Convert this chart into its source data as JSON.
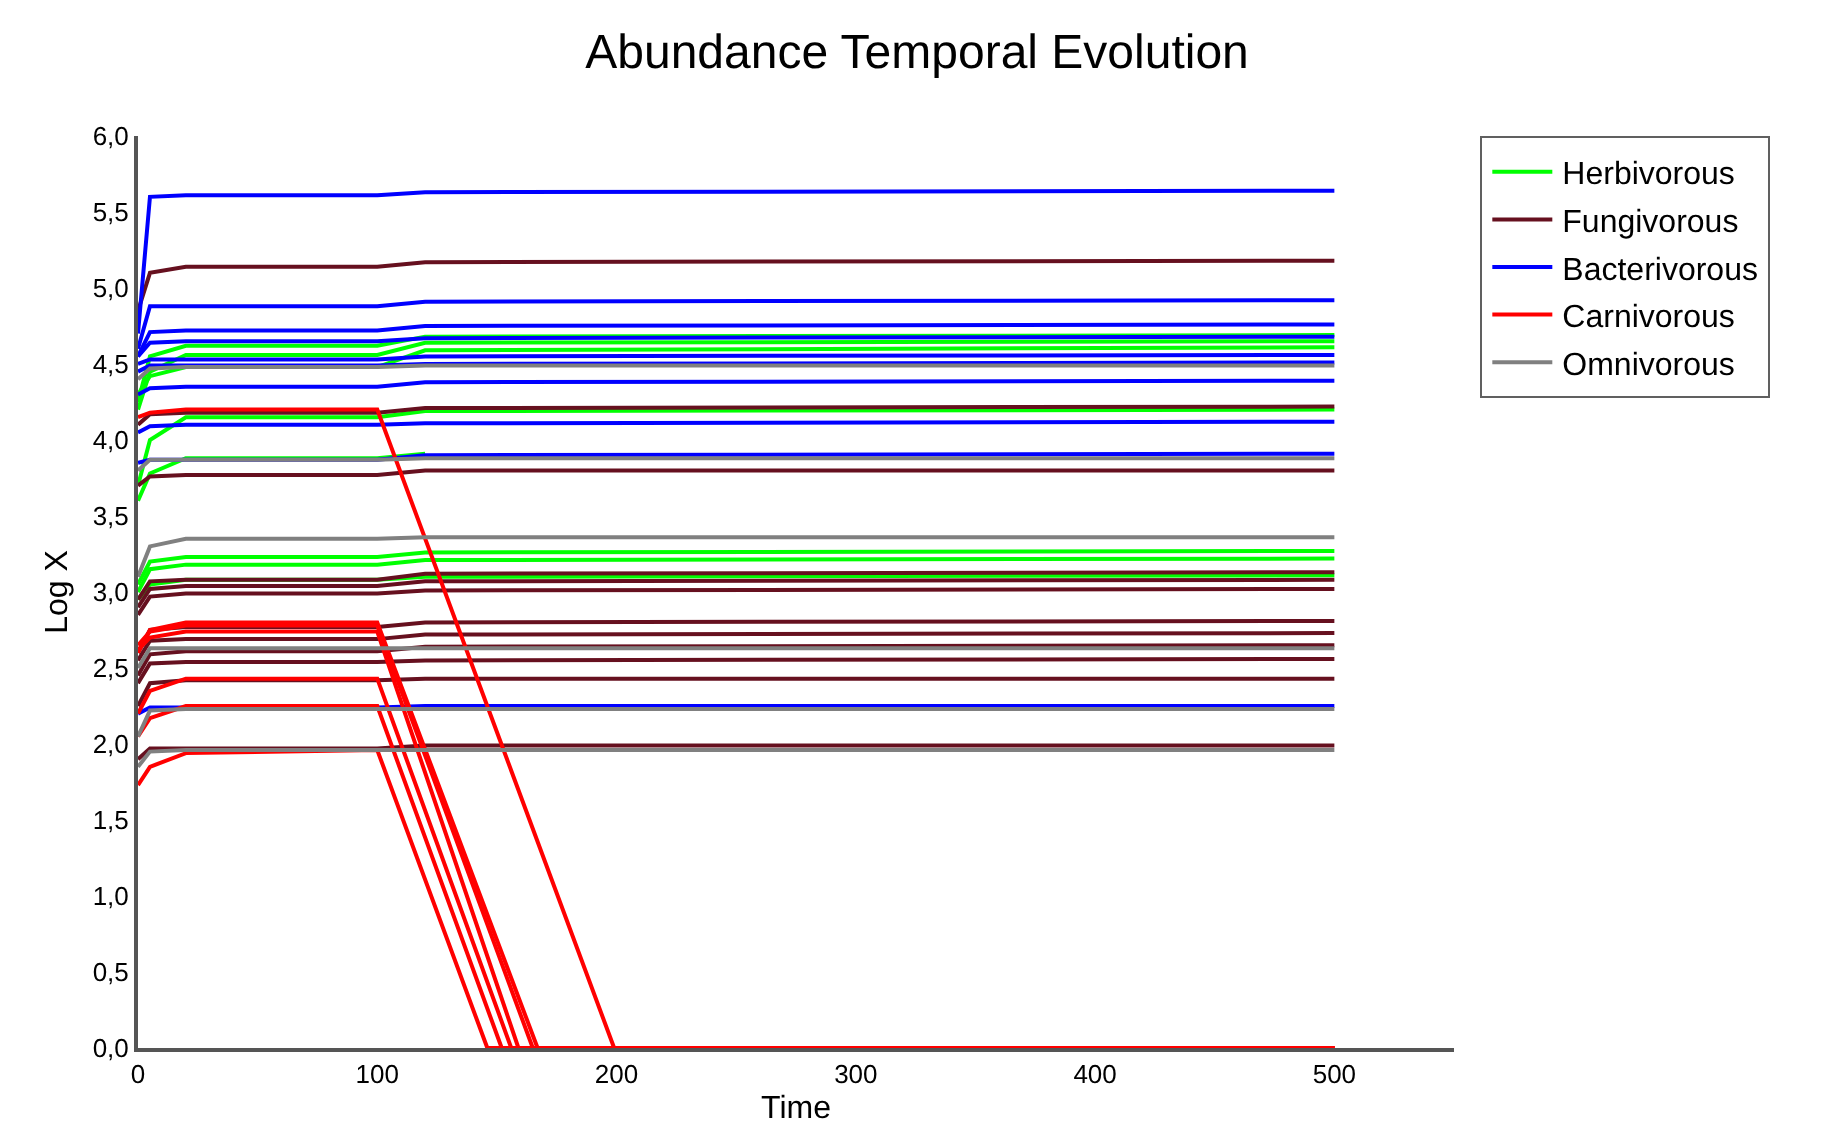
{
  "chart_data": {
    "type": "line",
    "title": "Abundance Temporal Evolution",
    "xlabel": "Time",
    "ylabel": "Log X",
    "x": [
      0,
      5,
      20,
      100,
      120,
      500
    ],
    "xlim": [
      0,
      550
    ],
    "xticks": [
      0,
      100,
      200,
      300,
      400,
      500
    ],
    "ylim": [
      0,
      6
    ],
    "yticks": [
      {
        "value": 0,
        "label": "0,0"
      },
      {
        "value": 0.5,
        "label": "0,5"
      },
      {
        "value": 1,
        "label": "1,0"
      },
      {
        "value": 1.5,
        "label": "1,5"
      },
      {
        "value": 2,
        "label": "2,0"
      },
      {
        "value": 2.5,
        "label": "2,5"
      },
      {
        "value": 3,
        "label": "3,0"
      },
      {
        "value": 3.5,
        "label": "3,5"
      },
      {
        "value": 4,
        "label": "4,0"
      },
      {
        "value": 4.5,
        "label": "4,5"
      },
      {
        "value": 5,
        "label": "5,0"
      },
      {
        "value": 5.5,
        "label": "5,5"
      },
      {
        "value": 6,
        "label": "6,0"
      }
    ],
    "legend": "top right",
    "marker": "none",
    "line_style": "solid",
    "series": [
      {
        "name": "Herbivorous",
        "color": "#00ff00",
        "values": [
          4.25,
          4.55,
          4.62,
          4.62,
          4.68,
          4.69
        ]
      },
      {
        "color": "#00ff00",
        "values": [
          4.2,
          4.45,
          4.56,
          4.56,
          4.64,
          4.65
        ]
      },
      {
        "color": "#00ff00",
        "values": [
          4.3,
          4.42,
          4.48,
          4.48,
          4.59,
          4.61
        ]
      },
      {
        "color": "#00ff00",
        "values": [
          3.7,
          4.0,
          4.15,
          4.15,
          4.19,
          4.2
        ]
      },
      {
        "color": "#00ff00",
        "values": [
          3.6,
          3.78,
          3.88,
          3.88,
          3.91,
          null
        ]
      },
      {
        "color": "#00ff00",
        "values": [
          3.05,
          3.2,
          3.23,
          3.23,
          3.26,
          3.27
        ]
      },
      {
        "color": "#00ff00",
        "values": [
          3.0,
          3.15,
          3.18,
          3.18,
          3.21,
          3.22
        ]
      },
      {
        "color": "#00ff00",
        "values": [
          2.95,
          3.05,
          3.08,
          3.08,
          3.1,
          3.11
        ]
      },
      {
        "name": "Fungivorous",
        "color": "#66101f",
        "values": [
          4.85,
          5.1,
          5.14,
          5.14,
          5.17,
          5.18
        ]
      },
      {
        "color": "#66101f",
        "values": [
          4.1,
          4.17,
          4.18,
          4.18,
          4.21,
          4.22
        ]
      },
      {
        "color": "#66101f",
        "values": [
          3.7,
          3.76,
          3.77,
          3.77,
          3.8,
          3.8
        ]
      },
      {
        "color": "#66101f",
        "values": [
          2.95,
          3.07,
          3.08,
          3.08,
          3.12,
          3.13
        ]
      },
      {
        "color": "#66101f",
        "values": [
          2.9,
          3.02,
          3.04,
          3.04,
          3.07,
          3.08
        ]
      },
      {
        "color": "#66101f",
        "values": [
          2.85,
          2.97,
          2.99,
          2.99,
          3.01,
          3.02
        ]
      },
      {
        "color": "#66101f",
        "values": [
          2.6,
          2.75,
          2.77,
          2.77,
          2.8,
          2.81
        ]
      },
      {
        "color": "#66101f",
        "values": [
          2.55,
          2.68,
          2.69,
          2.69,
          2.72,
          2.73
        ]
      },
      {
        "color": "#66101f",
        "values": [
          2.45,
          2.59,
          2.61,
          2.61,
          2.64,
          2.65
        ]
      },
      {
        "color": "#66101f",
        "values": [
          2.4,
          2.53,
          2.54,
          2.54,
          2.55,
          2.56
        ]
      },
      {
        "color": "#66101f",
        "values": [
          2.25,
          2.4,
          2.42,
          2.42,
          2.43,
          2.43
        ]
      },
      {
        "color": "#66101f",
        "values": [
          1.9,
          1.97,
          1.97,
          1.97,
          1.99,
          1.99
        ]
      },
      {
        "name": "Bacterivorous",
        "color": "#0000ff",
        "values": [
          4.7,
          5.6,
          5.61,
          5.61,
          5.63,
          5.64
        ]
      },
      {
        "color": "#0000ff",
        "values": [
          4.6,
          4.88,
          4.88,
          4.88,
          4.91,
          4.92
        ]
      },
      {
        "color": "#0000ff",
        "values": [
          4.55,
          4.71,
          4.72,
          4.72,
          4.75,
          4.76
        ]
      },
      {
        "color": "#0000ff",
        "values": [
          4.55,
          4.64,
          4.65,
          4.65,
          4.67,
          4.68
        ]
      },
      {
        "color": "#0000ff",
        "values": [
          4.5,
          4.53,
          4.53,
          4.53,
          4.55,
          4.56
        ]
      },
      {
        "color": "#0000ff",
        "values": [
          4.45,
          4.49,
          4.49,
          4.49,
          4.5,
          4.51
        ]
      },
      {
        "color": "#0000ff",
        "values": [
          4.3,
          4.34,
          4.35,
          4.35,
          4.38,
          4.39
        ]
      },
      {
        "color": "#0000ff",
        "values": [
          4.05,
          4.09,
          4.1,
          4.1,
          4.11,
          4.12
        ]
      },
      {
        "color": "#0000ff",
        "values": [
          3.85,
          3.87,
          3.87,
          3.87,
          3.9,
          3.91
        ]
      },
      {
        "color": "#0000ff",
        "values": [
          2.2,
          2.24,
          2.24,
          2.24,
          2.25,
          2.25
        ]
      },
      {
        "name": "Carnivorous",
        "color": "#ff0000",
        "x": [
          0,
          5,
          20,
          100,
          199,
          500
        ],
        "values": [
          4.15,
          4.18,
          4.2,
          4.2,
          0,
          0
        ]
      },
      {
        "color": "#ff0000",
        "x": [
          0,
          5,
          20,
          100,
          167,
          500
        ],
        "values": [
          2.6,
          2.75,
          2.8,
          2.8,
          0,
          0
        ]
      },
      {
        "color": "#ff0000",
        "x": [
          0,
          5,
          20,
          100,
          165,
          500
        ],
        "values": [
          2.65,
          2.74,
          2.78,
          2.78,
          0,
          0
        ]
      },
      {
        "color": "#ff0000",
        "x": [
          0,
          5,
          20,
          100,
          159,
          500
        ],
        "values": [
          2.62,
          2.7,
          2.74,
          2.74,
          0,
          0
        ]
      },
      {
        "color": "#ff0000",
        "x": [
          0,
          5,
          20,
          100,
          156,
          500
        ],
        "values": [
          2.2,
          2.35,
          2.43,
          2.43,
          0,
          0
        ]
      },
      {
        "color": "#ff0000",
        "x": [
          0,
          5,
          20,
          100,
          152,
          500
        ],
        "values": [
          2.05,
          2.17,
          2.25,
          2.25,
          0,
          0
        ]
      },
      {
        "color": "#ff0000",
        "x": [
          0,
          5,
          20,
          100,
          146,
          500
        ],
        "values": [
          1.73,
          1.85,
          1.94,
          1.96,
          0,
          0
        ]
      },
      {
        "name": "Omnivorous",
        "color": "#808080",
        "values": [
          4.4,
          4.47,
          4.48,
          4.48,
          4.49,
          4.49
        ]
      },
      {
        "color": "#808080",
        "values": [
          3.8,
          3.87,
          3.87,
          3.87,
          3.88,
          3.88
        ]
      },
      {
        "color": "#808080",
        "values": [
          3.1,
          3.3,
          3.35,
          3.35,
          3.36,
          3.36
        ]
      },
      {
        "color": "#808080",
        "values": [
          2.5,
          2.63,
          2.63,
          2.63,
          2.63,
          2.63
        ]
      },
      {
        "color": "#808080",
        "values": [
          2.05,
          2.22,
          2.23,
          2.23,
          2.23,
          2.23
        ]
      },
      {
        "color": "#808080",
        "values": [
          1.85,
          1.95,
          1.96,
          1.96,
          1.96,
          1.96
        ]
      }
    ]
  }
}
